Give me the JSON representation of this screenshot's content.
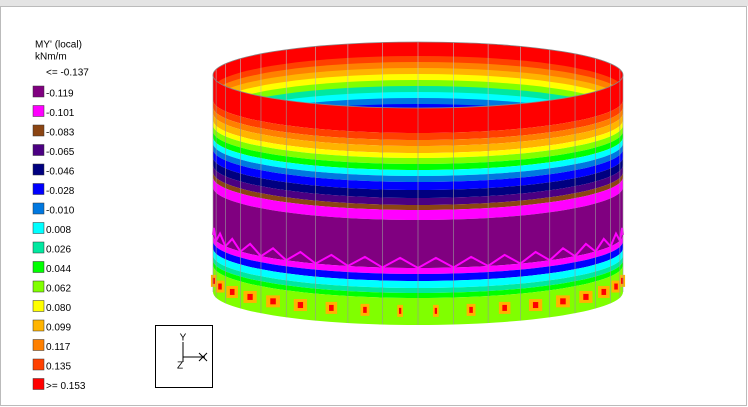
{
  "legend": {
    "title": "MY' (local)",
    "unit": "kNm/m",
    "top_label": "<= -0.137",
    "entries": [
      {
        "label": "-0.119",
        "color": "#800080"
      },
      {
        "label": "-0.101",
        "color": "#ff00ff"
      },
      {
        "label": "-0.083",
        "color": "#8b4513"
      },
      {
        "label": "-0.065",
        "color": "#4b0082"
      },
      {
        "label": "-0.046",
        "color": "#000080"
      },
      {
        "label": "-0.028",
        "color": "#0000ff"
      },
      {
        "label": "-0.010",
        "color": "#0078e0"
      },
      {
        "label": "0.008",
        "color": "#00ffff"
      },
      {
        "label": "0.026",
        "color": "#00e8a0"
      },
      {
        "label": "0.044",
        "color": "#00ff00"
      },
      {
        "label": "0.062",
        "color": "#80ff00"
      },
      {
        "label": "0.080",
        "color": "#ffff00"
      },
      {
        "label": "0.099",
        "color": "#ffb400"
      },
      {
        "label": "0.117",
        "color": "#ff8000"
      },
      {
        "label": "0.135",
        "color": "#ff4000"
      },
      {
        "label": ">= 0.153",
        "color": "#ff0000"
      }
    ]
  },
  "axes": {
    "y": "Y",
    "z": "Z"
  }
}
